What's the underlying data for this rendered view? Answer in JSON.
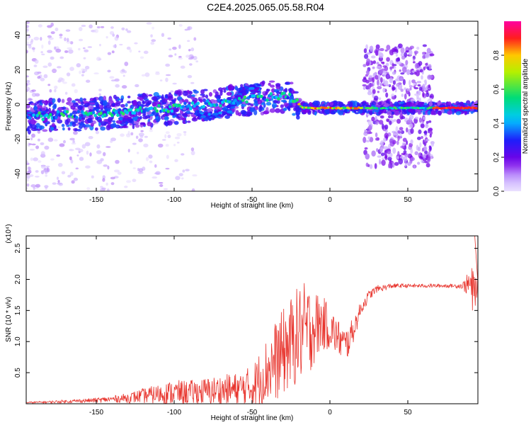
{
  "title": "C2E4.2025.065.05.58.R04",
  "chart_data": [
    {
      "type": "heatmap",
      "xlabel": "Height of straight line (km)",
      "ylabel": "Frequency (Hz)",
      "xlim": [
        -195,
        95
      ],
      "ylim": [
        -50,
        48
      ],
      "xticks": [
        -150,
        -100,
        -50,
        0,
        50
      ],
      "yticks": [
        -40,
        -20,
        0,
        20,
        40
      ],
      "colorbar": {
        "label": "Normalized spectral amplitude",
        "range": [
          0.0,
          1.0
        ],
        "ticks": [
          "0.0",
          "0.2",
          "0.4",
          "0.6",
          "0.8"
        ]
      },
      "ridge": [
        {
          "x": -190,
          "y": -7
        },
        {
          "x": -175,
          "y": -6
        },
        {
          "x": -160,
          "y": -6
        },
        {
          "x": -145,
          "y": -5
        },
        {
          "x": -130,
          "y": -4
        },
        {
          "x": -115,
          "y": -3
        },
        {
          "x": -100,
          "y": -2
        },
        {
          "x": -90,
          "y": -1
        },
        {
          "x": -80,
          "y": 0
        },
        {
          "x": -70,
          "y": 1
        },
        {
          "x": -60,
          "y": 2
        },
        {
          "x": -50,
          "y": 3
        },
        {
          "x": -40,
          "y": 4
        },
        {
          "x": -30,
          "y": 5
        },
        {
          "x": -22,
          "y": 3
        },
        {
          "x": -18,
          "y": -2
        },
        {
          "x": 0,
          "y": -2
        },
        {
          "x": 20,
          "y": -2
        },
        {
          "x": 40,
          "y": -2
        },
        {
          "x": 65,
          "y": -2
        },
        {
          "x": 95,
          "y": -2
        }
      ],
      "branch": [
        {
          "x": -85,
          "y": -6
        },
        {
          "x": -75,
          "y": -7
        },
        {
          "x": -65,
          "y": -3
        },
        {
          "x": -55,
          "y": 8
        },
        {
          "x": -45,
          "y": 10
        }
      ],
      "broadband_bands": [
        [
          22,
          66
        ]
      ]
    },
    {
      "type": "line",
      "xlabel": "Height of straight line (km)",
      "ylabel": "SNR (10 * v/v)",
      "y_multiplier": "(x10⁴)",
      "xlim": [
        -195,
        95
      ],
      "ylim": [
        0,
        2.7
      ],
      "xticks": [
        -150,
        -100,
        -50,
        0,
        50
      ],
      "yticks": [
        0.5,
        1.0,
        1.5,
        2.0,
        2.5
      ],
      "ytick_labels": [
        "0.5",
        "1.0",
        "1.5",
        "2.0",
        "2.5"
      ],
      "color": "#e8352e",
      "series": [
        {
          "x": [
            -195,
            -180,
            -160,
            -150,
            -140,
            -130,
            -120,
            -110,
            -100,
            -90,
            -80,
            -70,
            -60,
            -50,
            -45,
            -40,
            -35,
            -30,
            -25,
            -20,
            -15,
            -10,
            -5,
            0,
            5,
            10,
            15,
            20,
            25,
            30,
            40,
            50,
            60,
            70,
            80,
            85,
            90,
            92,
            94,
            95
          ],
          "y": [
            0.02,
            0.03,
            0.05,
            0.06,
            0.08,
            0.1,
            0.14,
            0.17,
            0.2,
            0.2,
            0.22,
            0.24,
            0.25,
            0.3,
            0.45,
            0.6,
            0.75,
            0.9,
            1.05,
            1.2,
            1.25,
            1.3,
            1.35,
            1.25,
            1.1,
            0.95,
            1.2,
            1.55,
            1.75,
            1.85,
            1.9,
            1.9,
            1.9,
            1.9,
            1.9,
            1.9,
            1.95,
            1.8,
            1.9,
            1.9
          ],
          "spread": [
            0.01,
            0.02,
            0.03,
            0.04,
            0.05,
            0.08,
            0.12,
            0.16,
            0.2,
            0.2,
            0.22,
            0.25,
            0.28,
            0.35,
            0.45,
            0.55,
            0.65,
            0.7,
            0.75,
            0.8,
            0.8,
            0.6,
            0.45,
            0.35,
            0.3,
            0.3,
            0.2,
            0.12,
            0.08,
            0.06,
            0.04,
            0.03,
            0.03,
            0.03,
            0.03,
            0.05,
            0.25,
            0.45,
            0.2,
            0.1
          ]
        }
      ]
    }
  ]
}
